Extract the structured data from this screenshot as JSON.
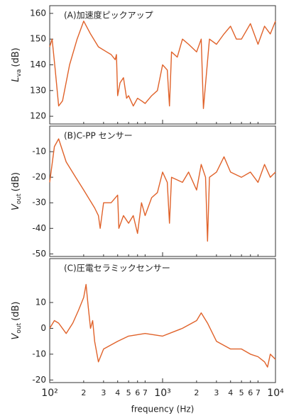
{
  "chart_data": [
    {
      "type": "line",
      "title": "(A)加速度ピックアップ",
      "ylabel": {
        "symbol": "L",
        "subscript": "va",
        "unit": "(dB)"
      },
      "xscale": "log",
      "xlim": [
        100,
        10000
      ],
      "ylim": [
        117,
        163
      ],
      "yticks": [
        120,
        130,
        140,
        150,
        160
      ],
      "x": [
        100,
        105,
        112,
        120,
        130,
        150,
        175,
        200,
        230,
        270,
        320,
        350,
        380,
        390,
        400,
        420,
        450,
        480,
        500,
        550,
        600,
        650,
        700,
        800,
        900,
        1000,
        1100,
        1150,
        1200,
        1350,
        1500,
        1700,
        2000,
        2200,
        2300,
        2600,
        3000,
        3500,
        4000,
        4500,
        5000,
        6000,
        7000,
        8000,
        9000,
        10000
      ],
      "series": [
        {
          "color": "#e0622a",
          "values": [
            147,
            150,
            138,
            124,
            126,
            140,
            150,
            157,
            152,
            147,
            145,
            144,
            142,
            144,
            128,
            133,
            135,
            127,
            128,
            124,
            127,
            126,
            125,
            128,
            130,
            140,
            138,
            124,
            145,
            143,
            150,
            148,
            145,
            150,
            123,
            150,
            148,
            152,
            155,
            150,
            150,
            156,
            148,
            155,
            152,
            157
          ]
        }
      ]
    },
    {
      "type": "line",
      "title": "(B)C-PP センサー",
      "ylabel": {
        "symbol": "V",
        "subscript": "out",
        "unit": "(dB)"
      },
      "xscale": "log",
      "xlim": [
        100,
        10000
      ],
      "ylim": [
        -51,
        0
      ],
      "yticks": [
        -10,
        -20,
        -30,
        -40,
        -50
      ],
      "x": [
        100,
        110,
        120,
        140,
        170,
        200,
        250,
        270,
        280,
        300,
        350,
        400,
        410,
        450,
        500,
        550,
        600,
        650,
        700,
        800,
        900,
        1000,
        1100,
        1150,
        1200,
        1500,
        1700,
        2000,
        2200,
        2400,
        2500,
        2600,
        3000,
        3500,
        4000,
        5000,
        6000,
        7000,
        8000,
        9000,
        10000
      ],
      "series": [
        {
          "color": "#e0622a",
          "values": [
            -22,
            -8,
            -5,
            -14,
            -20,
            -25,
            -32,
            -35,
            -40,
            -30,
            -30,
            -27,
            -40,
            -35,
            -38,
            -35,
            -42,
            -30,
            -35,
            -28,
            -26,
            -18,
            -22,
            -38,
            -20,
            -22,
            -18,
            -25,
            -15,
            -20,
            -45,
            -20,
            -18,
            -12,
            -18,
            -20,
            -18,
            -22,
            -15,
            -20,
            -18
          ]
        }
      ]
    },
    {
      "type": "line",
      "title": "(C)圧電セラミックセンサー",
      "ylabel": {
        "symbol": "V",
        "subscript": "out",
        "unit": "(dB)"
      },
      "xlabel": "frequency (Hz)",
      "xscale": "log",
      "xlim": [
        100,
        10000
      ],
      "ylim": [
        -21,
        27
      ],
      "yticks": [
        10,
        0,
        -10,
        -20
      ],
      "xticks": [
        {
          "value": 100,
          "label": "10²"
        },
        {
          "value": 200,
          "label": "2"
        },
        {
          "value": 300,
          "label": "3"
        },
        {
          "value": 400,
          "label": "4"
        },
        {
          "value": 500,
          "label": "5"
        },
        {
          "value": 600,
          "label": "6"
        },
        {
          "value": 700,
          "label": "7"
        },
        {
          "value": 1000,
          "label": "10³"
        },
        {
          "value": 2000,
          "label": "2"
        },
        {
          "value": 3000,
          "label": "3"
        },
        {
          "value": 4000,
          "label": "4"
        },
        {
          "value": 5000,
          "label": "5"
        },
        {
          "value": 6000,
          "label": "6"
        },
        {
          "value": 7000,
          "label": "7"
        },
        {
          "value": 10000,
          "label": "10⁴"
        }
      ],
      "x": [
        100,
        110,
        120,
        140,
        160,
        180,
        200,
        210,
        220,
        230,
        240,
        250,
        270,
        300,
        400,
        500,
        700,
        1000,
        1500,
        2000,
        2200,
        2500,
        3000,
        4000,
        5000,
        6000,
        7000,
        8000,
        8500,
        9000,
        10000
      ],
      "series": [
        {
          "color": "#e0622a",
          "values": [
            0,
            3,
            2,
            -2,
            2,
            7,
            12,
            17,
            8,
            0,
            3,
            -5,
            -13,
            -8,
            -5,
            -3,
            -2,
            -3,
            0,
            3,
            6,
            2,
            -5,
            -8,
            -8,
            -10,
            -11,
            -13,
            -15,
            -10,
            -12
          ]
        }
      ]
    }
  ]
}
